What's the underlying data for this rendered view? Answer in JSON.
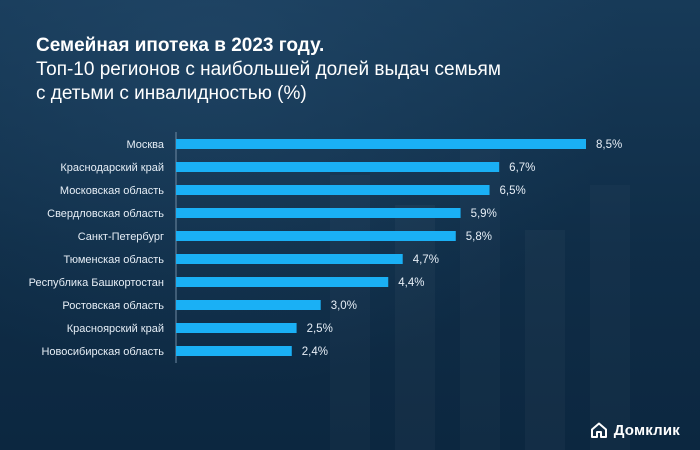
{
  "header": {
    "title": "Семейная ипотека в 2023 году.",
    "subtitle_line1": "Топ-10 регионов с наибольшей долей выдач семьям",
    "subtitle_line2": "с детьми с инвалидностью (%)"
  },
  "brand": {
    "name": "Домклик",
    "logo_icon": "house-icon"
  },
  "colors": {
    "background": "#0f2d47",
    "bar": "#1ab0f5",
    "text": "#ffffff"
  },
  "chart_data": {
    "type": "bar",
    "orientation": "horizontal",
    "categories": [
      "Москва",
      "Краснодарский край",
      "Московская область",
      "Свердловская область",
      "Санкт-Петербург",
      "Тюменская область",
      "Республика Башкортостан",
      "Ростовская область",
      "Красноярский край",
      "Новосибирская область"
    ],
    "values": [
      8.5,
      6.7,
      6.5,
      5.9,
      5.8,
      4.7,
      4.4,
      3.0,
      2.5,
      2.4
    ],
    "value_labels": [
      "8,5%",
      "6,7%",
      "6,5%",
      "5,9%",
      "5,8%",
      "4,7%",
      "4,4%",
      "3,0%",
      "2,5%",
      "2,4%"
    ],
    "title": "Семейная ипотека в 2023 году.",
    "xlabel": "",
    "ylabel": "",
    "xlim": [
      0,
      8.5
    ],
    "grid": false,
    "legend": "none"
  }
}
